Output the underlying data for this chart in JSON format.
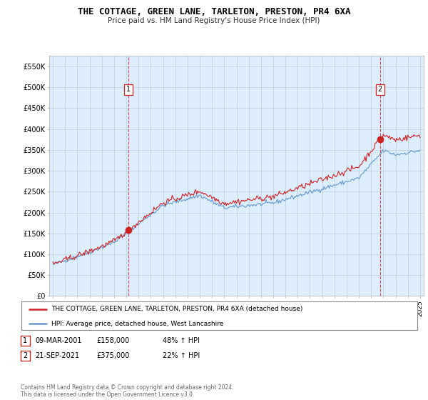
{
  "title": "THE COTTAGE, GREEN LANE, TARLETON, PRESTON, PR4 6XA",
  "subtitle": "Price paid vs. HM Land Registry's House Price Index (HPI)",
  "legend_line1": "THE COTTAGE, GREEN LANE, TARLETON, PRESTON, PR4 6XA (detached house)",
  "legend_line2": "HPI: Average price, detached house, West Lancashire",
  "sale1_date": "09-MAR-2001",
  "sale1_price": "£158,000",
  "sale1_hpi": "48% ↑ HPI",
  "sale2_date": "21-SEP-2021",
  "sale2_price": "£375,000",
  "sale2_hpi": "22% ↑ HPI",
  "footer": "Contains HM Land Registry data © Crown copyright and database right 2024.\nThis data is licensed under the Open Government Licence v3.0.",
  "hpi_color": "#6699cc",
  "price_color": "#cc2222",
  "background_color": "#ffffff",
  "chart_bg_color": "#ddeeff",
  "grid_color": "#bbccdd",
  "ylim": [
    0,
    575000
  ],
  "yticks": [
    0,
    50000,
    100000,
    150000,
    200000,
    250000,
    300000,
    350000,
    400000,
    450000,
    500000,
    550000
  ],
  "ytick_labels": [
    "£0",
    "£50K",
    "£100K",
    "£150K",
    "£200K",
    "£250K",
    "£300K",
    "£350K",
    "£400K",
    "£450K",
    "£500K",
    "£550K"
  ],
  "sale1_x": 2001.19,
  "sale1_y": 158000,
  "sale2_x": 2021.72,
  "sale2_y": 375000,
  "xlim_left": 1994.7,
  "xlim_right": 2025.3
}
